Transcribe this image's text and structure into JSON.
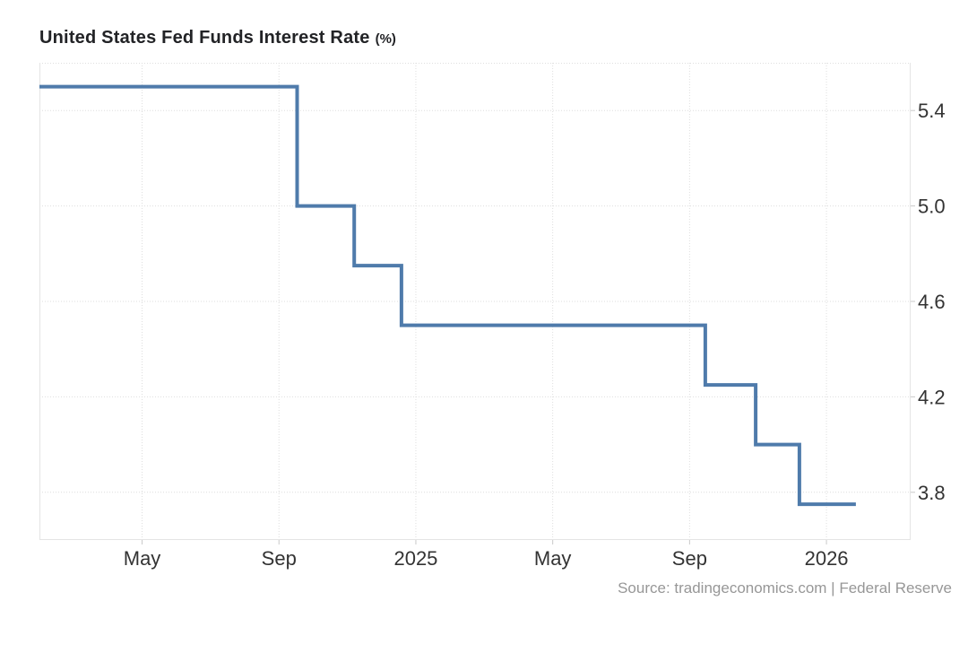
{
  "header": {
    "title": "United States Fed Funds Interest Rate",
    "unit": "(%)"
  },
  "footer": {
    "source": "Source: tradingeconomics.com | Federal Reserve"
  },
  "chart_data": {
    "type": "line",
    "step": true,
    "title": "United States Fed Funds Interest Rate (%)",
    "xlabel": "",
    "ylabel": "",
    "grid": true,
    "legend": false,
    "y_range": [
      3.6,
      5.6
    ],
    "y_ticks": [
      "5.4",
      "5.0",
      "4.6",
      "4.2",
      "3.8"
    ],
    "y_tick_values": [
      5.4,
      5.0,
      4.6,
      4.2,
      3.8
    ],
    "x_range_t": [
      1.0,
      26.46
    ],
    "t_unit": "months since 2024-01",
    "x_ticks": [
      {
        "label": "May",
        "t": 4
      },
      {
        "label": "Sep",
        "t": 8
      },
      {
        "label": "2025",
        "t": 12
      },
      {
        "label": "May",
        "t": 16
      },
      {
        "label": "Sep",
        "t": 20
      },
      {
        "label": "2026",
        "t": 24
      }
    ],
    "series": [
      {
        "name": "Fed Funds Interest Rate (%)",
        "points": [
          {
            "date": "2024-02",
            "t": 1.0,
            "value": 5.5
          },
          {
            "date": "2024-09",
            "t": 8.53,
            "value": 5.0
          },
          {
            "date": "2024-11",
            "t": 10.2,
            "value": 4.75
          },
          {
            "date": "2024-12",
            "t": 11.58,
            "value": 4.5
          },
          {
            "date": "2025-09",
            "t": 20.46,
            "value": 4.25
          },
          {
            "date": "2025-10",
            "t": 21.93,
            "value": 4.0
          },
          {
            "date": "2025-12",
            "t": 23.21,
            "value": 3.75
          },
          {
            "date": "2026-01",
            "t": 24.86,
            "value": 3.75
          }
        ]
      }
    ],
    "colors": {
      "line": "#4f7bab",
      "grid": "#dedede",
      "axis_border": "#e4e4e4",
      "tick_mark": "#c9c9c9",
      "tick_label": "#333333",
      "title": "#222326",
      "source": "#979797"
    }
  }
}
